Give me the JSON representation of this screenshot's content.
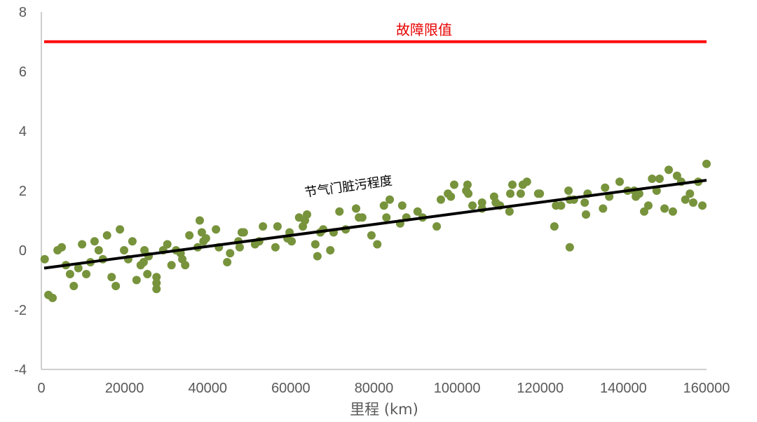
{
  "chart_data": {
    "type": "scatter",
    "xlabel": "里程 (km)",
    "ylabel": "",
    "xlim": [
      0,
      160000
    ],
    "ylim": [
      -4,
      8
    ],
    "xticks": [
      0,
      20000,
      40000,
      60000,
      80000,
      100000,
      120000,
      140000,
      160000
    ],
    "yticks": [
      -4,
      -2,
      0,
      2,
      4,
      6,
      8
    ],
    "grid": false,
    "colors": {
      "points": "#77933c",
      "trend": "#000000",
      "limit": "#ff0000",
      "axis": "#bfbfbf",
      "text": "#595959"
    },
    "limit_line": {
      "label": "故障限值",
      "y": 7
    },
    "trendline": {
      "label": "节气门脏污程度",
      "x": [
        0,
        160000
      ],
      "y": [
        -0.6,
        2.35
      ]
    },
    "series": [
      {
        "name": "节气门脏污程度",
        "points": [
          [
            800,
            -0.3
          ],
          [
            1700,
            -1.5
          ],
          [
            2700,
            -1.6
          ],
          [
            3900,
            0
          ],
          [
            4900,
            0.1
          ],
          [
            5900,
            -0.5
          ],
          [
            6900,
            -0.8
          ],
          [
            7800,
            -1.2
          ],
          [
            8900,
            -0.6
          ],
          [
            9800,
            0.2
          ],
          [
            10800,
            -0.8
          ],
          [
            11800,
            -0.4
          ],
          [
            12800,
            0.3
          ],
          [
            13800,
            0
          ],
          [
            14800,
            -0.3
          ],
          [
            15800,
            0.5
          ],
          [
            16900,
            -0.9
          ],
          [
            17900,
            -1.2
          ],
          [
            18900,
            0.7
          ],
          [
            19900,
            0
          ],
          [
            20900,
            -0.3
          ],
          [
            21900,
            0.3
          ],
          [
            22900,
            -1.0
          ],
          [
            23900,
            -0.5
          ],
          [
            24600,
            -0.4
          ],
          [
            24800,
            0
          ],
          [
            25500,
            -0.8
          ],
          [
            25800,
            -0.2
          ],
          [
            27700,
            -0.9
          ],
          [
            27700,
            -1.1
          ],
          [
            27700,
            -1.3
          ],
          [
            29300,
            0
          ],
          [
            30300,
            0.2
          ],
          [
            31300,
            -0.5
          ],
          [
            32400,
            0
          ],
          [
            33500,
            -0.1
          ],
          [
            33900,
            -0.3
          ],
          [
            34600,
            -0.5
          ],
          [
            35600,
            0.5
          ],
          [
            37600,
            0.1
          ],
          [
            38100,
            1.0
          ],
          [
            38600,
            0.6
          ],
          [
            39000,
            0.3
          ],
          [
            39600,
            0.4
          ],
          [
            42000,
            0.7
          ],
          [
            42700,
            0.1
          ],
          [
            44700,
            -0.4
          ],
          [
            45400,
            -0.1
          ],
          [
            47400,
            0.3
          ],
          [
            47700,
            0.1
          ],
          [
            48200,
            0.6
          ],
          [
            48700,
            0.6
          ],
          [
            51400,
            0.2
          ],
          [
            52400,
            0.3
          ],
          [
            53300,
            0.8
          ],
          [
            56300,
            0.1
          ],
          [
            56800,
            0.8
          ],
          [
            59200,
            0.4
          ],
          [
            59700,
            0.6
          ],
          [
            60200,
            0.3
          ],
          [
            62000,
            1.1
          ],
          [
            62900,
            0.8
          ],
          [
            63400,
            1.0
          ],
          [
            63900,
            1.2
          ],
          [
            65900,
            0.2
          ],
          [
            66400,
            -0.2
          ],
          [
            67100,
            0.6
          ],
          [
            67800,
            0.7
          ],
          [
            69500,
            0
          ],
          [
            70300,
            0.6
          ],
          [
            71700,
            1.3
          ],
          [
            73200,
            0.7
          ],
          [
            75700,
            1.4
          ],
          [
            76400,
            1.1
          ],
          [
            77200,
            1.1
          ],
          [
            79400,
            0.5
          ],
          [
            80800,
            0.2
          ],
          [
            82400,
            1.5
          ],
          [
            83000,
            1.1
          ],
          [
            83800,
            1.7
          ],
          [
            86300,
            0.9
          ],
          [
            86800,
            1.5
          ],
          [
            87800,
            1.1
          ],
          [
            90500,
            1.3
          ],
          [
            91700,
            1.1
          ],
          [
            95100,
            0.8
          ],
          [
            96100,
            1.7
          ],
          [
            97800,
            1.9
          ],
          [
            98500,
            1.8
          ],
          [
            99300,
            2.2
          ],
          [
            102200,
            2.0
          ],
          [
            102500,
            2.2
          ],
          [
            102700,
            1.9
          ],
          [
            103700,
            1.5
          ],
          [
            106000,
            1.4
          ],
          [
            106000,
            1.6
          ],
          [
            108900,
            1.8
          ],
          [
            109300,
            1.6
          ],
          [
            110300,
            1.5
          ],
          [
            112600,
            1.3
          ],
          [
            112800,
            1.9
          ],
          [
            113300,
            2.2
          ],
          [
            115300,
            1.9
          ],
          [
            115800,
            2.2
          ],
          [
            116800,
            2.3
          ],
          [
            119500,
            1.9
          ],
          [
            119900,
            1.9
          ],
          [
            123400,
            0.8
          ],
          [
            123800,
            1.5
          ],
          [
            125000,
            1.5
          ],
          [
            126800,
            2.0
          ],
          [
            127100,
            1.7
          ],
          [
            127100,
            0.1
          ],
          [
            128100,
            1.7
          ],
          [
            130700,
            1.6
          ],
          [
            131000,
            1.2
          ],
          [
            131400,
            1.9
          ],
          [
            135100,
            1.4
          ],
          [
            135600,
            2.1
          ],
          [
            136600,
            1.8
          ],
          [
            139100,
            2.3
          ],
          [
            141000,
            2.0
          ],
          [
            142600,
            2.0
          ],
          [
            143000,
            1.8
          ],
          [
            143800,
            1.9
          ],
          [
            145000,
            1.3
          ],
          [
            146000,
            1.5
          ],
          [
            146900,
            2.4
          ],
          [
            148000,
            2.0
          ],
          [
            148700,
            2.4
          ],
          [
            149900,
            1.4
          ],
          [
            150900,
            2.7
          ],
          [
            151900,
            1.3
          ],
          [
            152900,
            2.5
          ],
          [
            153900,
            2.3
          ],
          [
            154900,
            1.7
          ],
          [
            156000,
            1.9
          ],
          [
            156800,
            1.6
          ],
          [
            158000,
            2.3
          ],
          [
            159000,
            1.5
          ],
          [
            160000,
            2.9
          ]
        ]
      }
    ]
  }
}
